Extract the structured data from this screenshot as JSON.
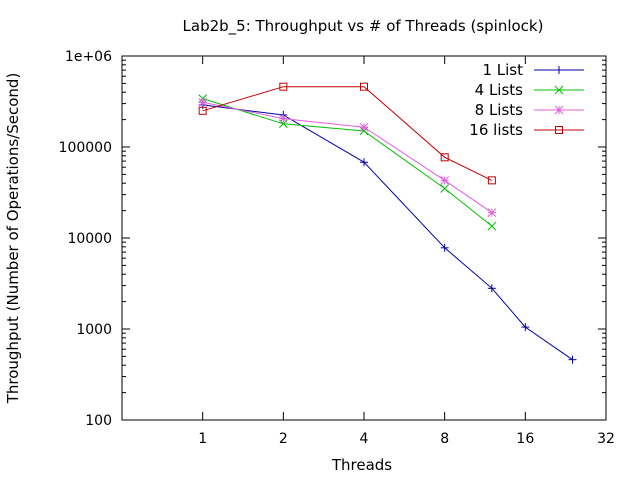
{
  "chart_data": {
    "type": "line",
    "title": "Lab2b_5: Throughput vs # of Threads (spinlock)",
    "xlabel": "Threads",
    "ylabel": "Throughput (Number of Operations/Second)",
    "xscale": "log2",
    "yscale": "log10",
    "xlim": [
      0.5,
      32
    ],
    "ylim": [
      100,
      1000000
    ],
    "xticks": [
      {
        "value": 1,
        "label": "1"
      },
      {
        "value": 2,
        "label": "2"
      },
      {
        "value": 4,
        "label": "4"
      },
      {
        "value": 8,
        "label": "8"
      },
      {
        "value": 16,
        "label": "16"
      },
      {
        "value": 32,
        "label": "32"
      }
    ],
    "yticks": [
      {
        "value": 100,
        "label": "100"
      },
      {
        "value": 1000,
        "label": "1000"
      },
      {
        "value": 10000,
        "label": "10000"
      },
      {
        "value": 100000,
        "label": "100000"
      },
      {
        "value": 1000000,
        "label": "1e+06"
      }
    ],
    "grid": false,
    "legend_position": "top-right",
    "series": [
      {
        "name": "1 List",
        "color": "#0000a0",
        "marker": "plus",
        "points": [
          [
            1,
            290000
          ],
          [
            2,
            225000
          ],
          [
            4,
            68000
          ],
          [
            8,
            7800
          ],
          [
            12,
            2800
          ],
          [
            16,
            1050
          ],
          [
            24,
            460
          ]
        ]
      },
      {
        "name": "4 Lists",
        "color": "#00c000",
        "marker": "cross",
        "points": [
          [
            1,
            340000
          ],
          [
            2,
            180000
          ],
          [
            4,
            150000
          ],
          [
            8,
            35000
          ],
          [
            12,
            13500
          ]
        ]
      },
      {
        "name": "8 Lists",
        "color": "#e060e0",
        "marker": "star",
        "points": [
          [
            1,
            310000
          ],
          [
            2,
            205000
          ],
          [
            4,
            165000
          ],
          [
            8,
            43000
          ],
          [
            12,
            19000
          ]
        ]
      },
      {
        "name": "16 lists",
        "color": "#c00000",
        "marker": "square",
        "points": [
          [
            1,
            250000
          ],
          [
            2,
            460000
          ],
          [
            4,
            460000
          ],
          [
            8,
            77000
          ],
          [
            12,
            43000
          ]
        ]
      }
    ]
  }
}
